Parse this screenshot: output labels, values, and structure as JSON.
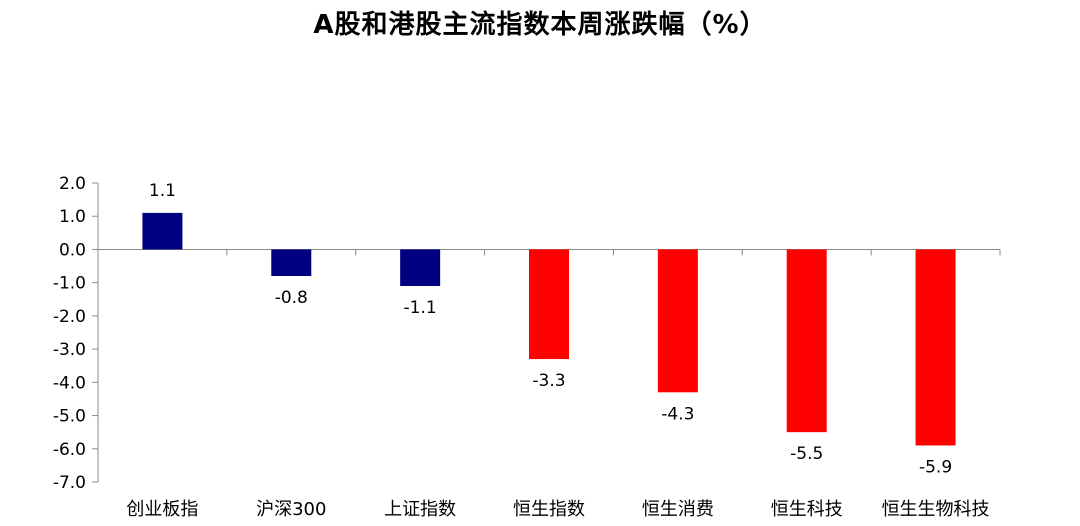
{
  "chart_data": {
    "type": "bar",
    "title": "A股和港股主流指数本周涨跌幅（%）",
    "categories": [
      "创业板指",
      "沪深300",
      "上证指数",
      "恒生指数",
      "恒生消费",
      "恒生科技",
      "恒生生物科技"
    ],
    "values": [
      1.1,
      -0.8,
      -1.1,
      -3.3,
      -4.3,
      -5.5,
      -5.9
    ],
    "value_labels": [
      "1.1",
      "-0.8",
      "-1.1",
      "-3.3",
      "-4.3",
      "-5.5",
      "-5.9"
    ],
    "bar_colors": [
      "#000080",
      "#000080",
      "#000080",
      "#ff0000",
      "#ff0000",
      "#ff0000",
      "#ff0000"
    ],
    "ylim": [
      -7.0,
      2.0
    ],
    "yticks": [
      "2.0",
      "1.0",
      "0.0",
      "-1.0",
      "-2.0",
      "-3.0",
      "-4.0",
      "-5.0",
      "-6.0",
      "-7.0"
    ],
    "ytick_values": [
      2,
      1,
      0,
      -1,
      -2,
      -3,
      -4,
      -5,
      -6,
      -7
    ],
    "grid": false,
    "legend": "none"
  }
}
